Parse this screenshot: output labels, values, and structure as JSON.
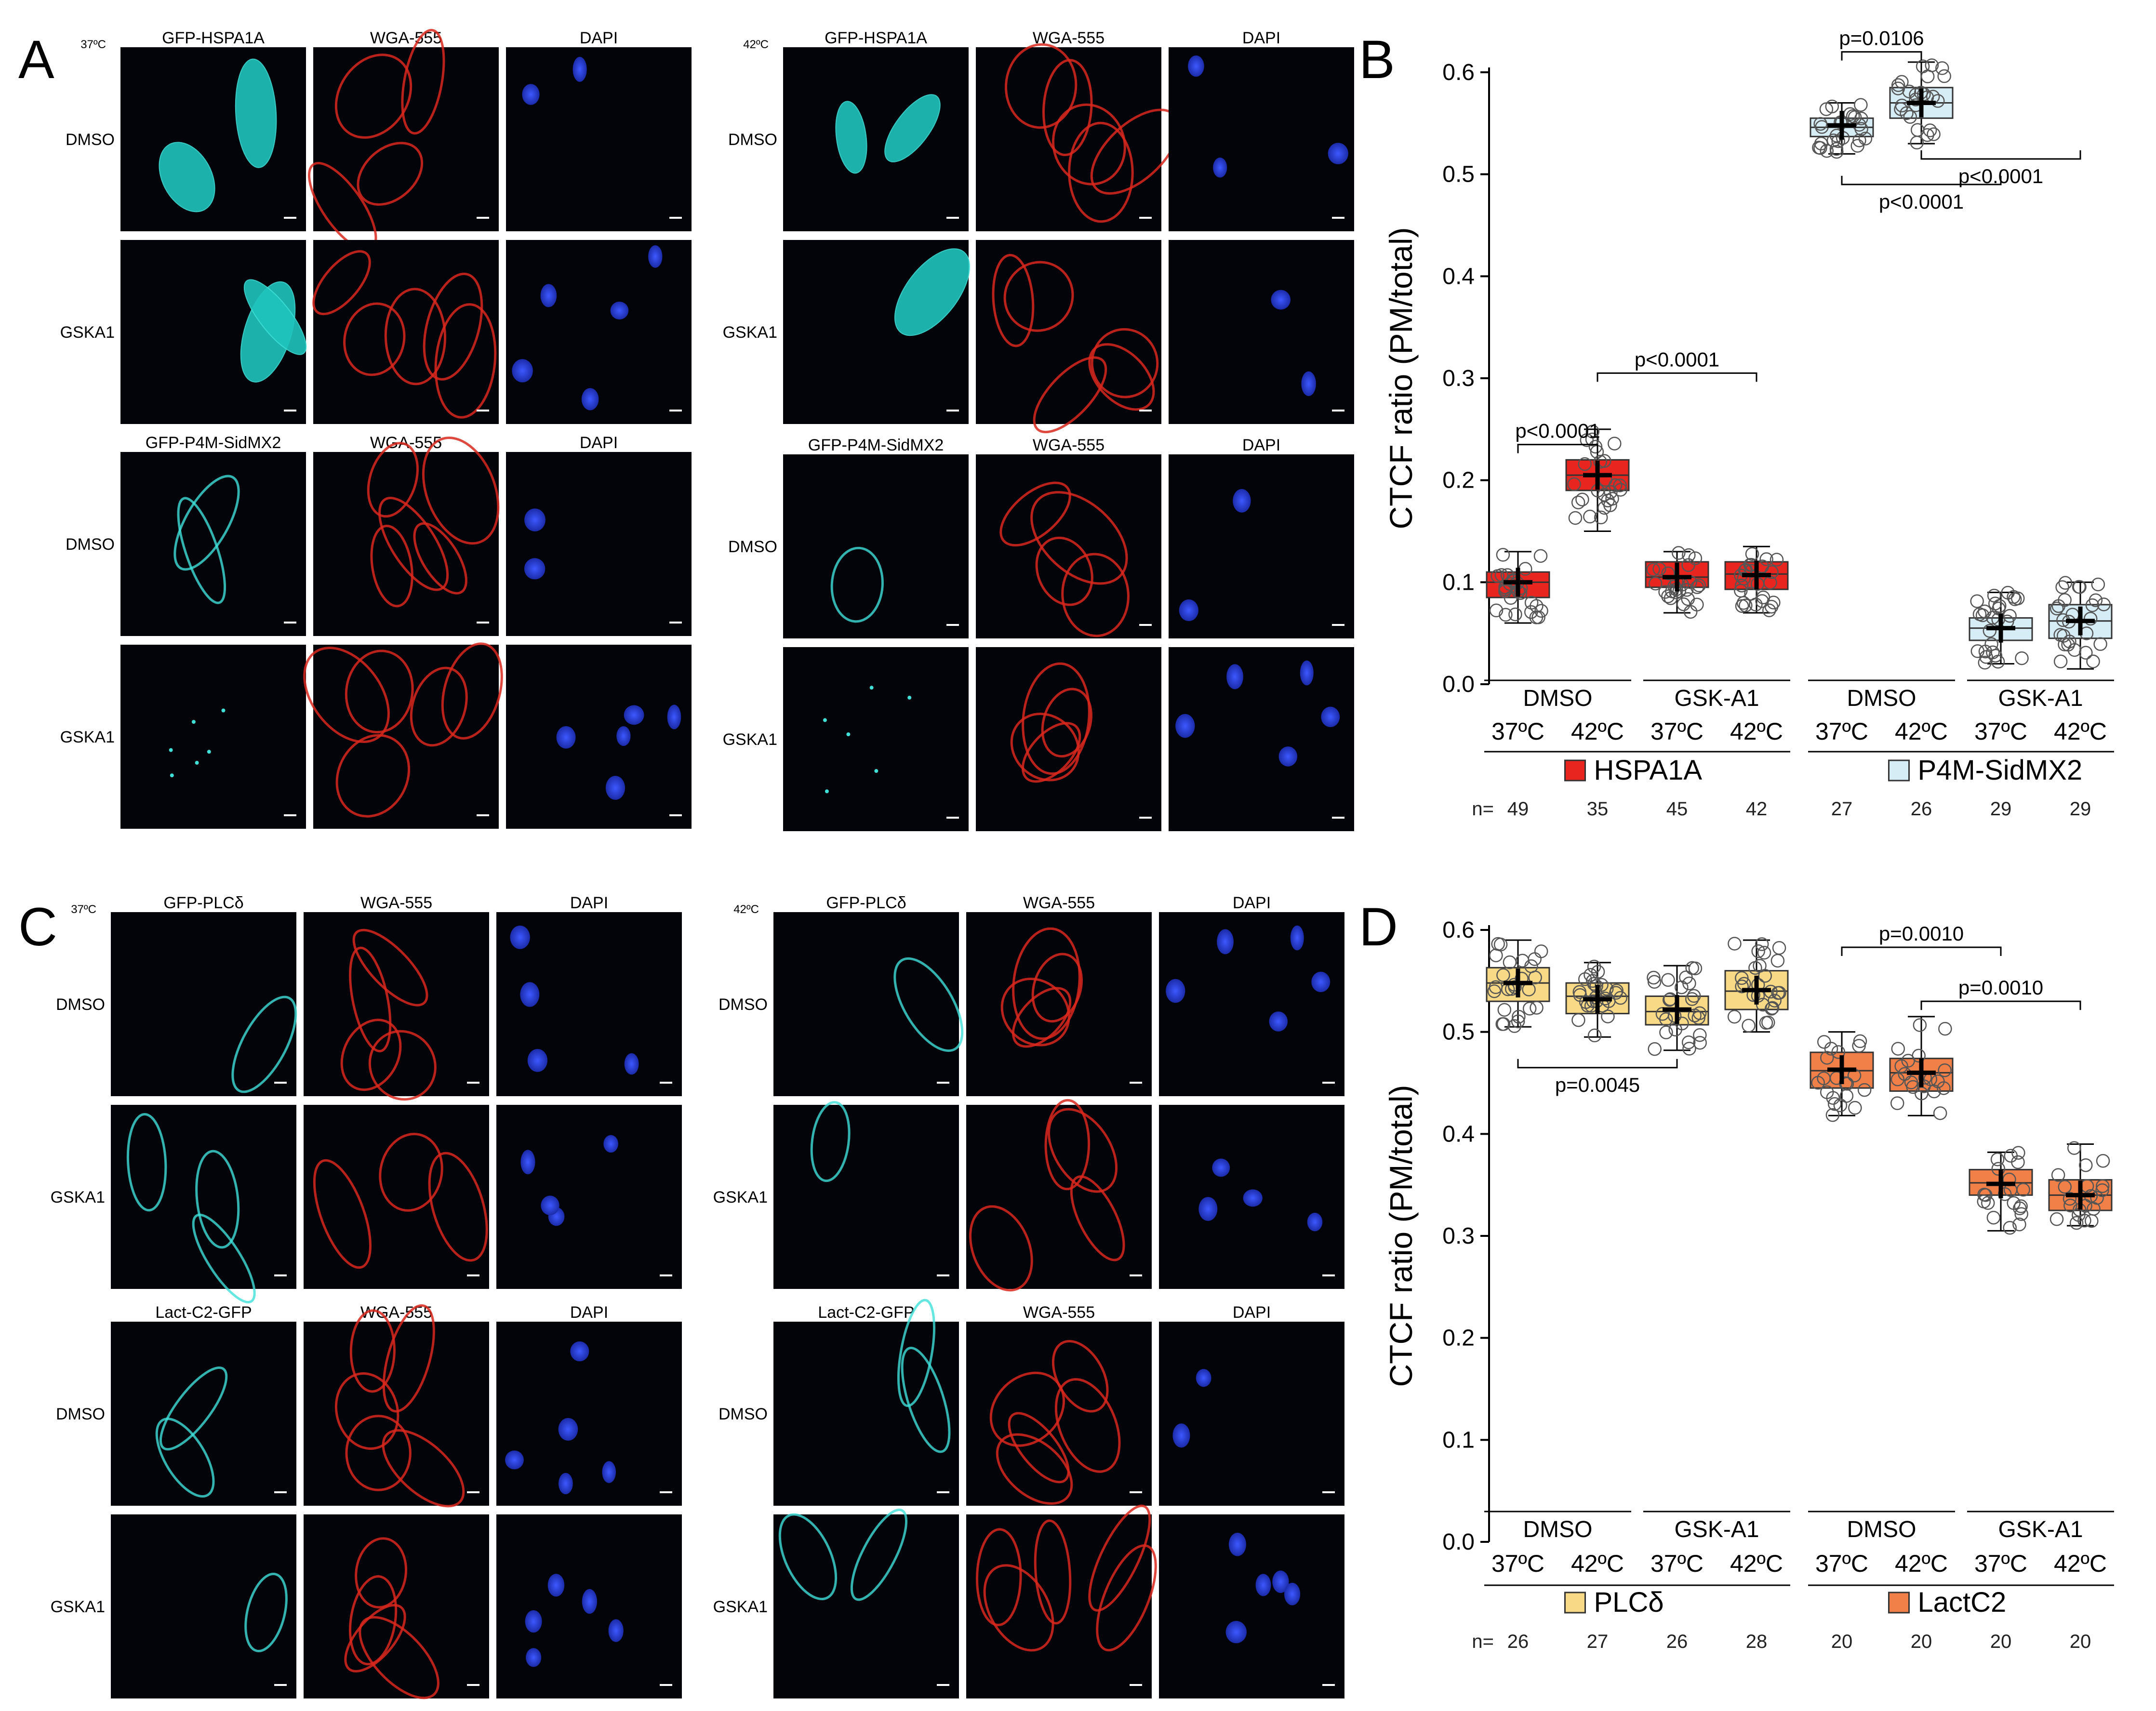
{
  "figure": {
    "panel_labels": [
      "A",
      "B",
      "C",
      "D"
    ],
    "microscopy": [
      {
        "panel": "A",
        "blocks": [
          {
            "temp": "37ºC",
            "columns": [
              "GFP-HSPA1A",
              "WGA-555",
              "DAPI"
            ],
            "rows": [
              "DMSO",
              "GSKA1"
            ],
            "reporter": "HSPA1A"
          },
          {
            "temp": "42ºC",
            "columns": [
              "GFP-HSPA1A",
              "WGA-555",
              "DAPI"
            ],
            "rows": [
              "DMSO",
              "GSKA1"
            ],
            "reporter": "HSPA1A"
          },
          {
            "temp": "",
            "columns": [
              "GFP-P4M-SidMX2",
              "WGA-555",
              "DAPI"
            ],
            "rows": [
              "DMSO",
              "GSKA1"
            ],
            "reporter": "P4M"
          },
          {
            "temp": "",
            "columns": [
              "GFP-P4M-SidMX2",
              "WGA-555",
              "DAPI"
            ],
            "rows": [
              "DMSO",
              "GSKA1"
            ],
            "reporter": "P4M"
          }
        ]
      },
      {
        "panel": "C",
        "blocks": [
          {
            "temp": "37ºC",
            "columns": [
              "GFP-PLCδ",
              "WGA-555",
              "DAPI"
            ],
            "rows": [
              "DMSO",
              "GSKA1"
            ],
            "reporter": "PLC"
          },
          {
            "temp": "42ºC",
            "columns": [
              "GFP-PLCδ",
              "WGA-555",
              "DAPI"
            ],
            "rows": [
              "DMSO",
              "GSKA1"
            ],
            "reporter": "PLC"
          },
          {
            "temp": "",
            "columns": [
              "Lact-C2-GFP",
              "WGA-555",
              "DAPI"
            ],
            "rows": [
              "DMSO",
              "GSKA1"
            ],
            "reporter": "Lact"
          },
          {
            "temp": "",
            "columns": [
              "Lact-C2-GFP",
              "WGA-555",
              "DAPI"
            ],
            "rows": [
              "DMSO",
              "GSKA1"
            ],
            "reporter": "Lact"
          }
        ]
      }
    ]
  },
  "chart_data": [
    {
      "panel": "B",
      "type": "box",
      "ylabel": "CTCF ratio (PM/total)",
      "ylim": [
        0,
        0.6
      ],
      "yticks": [
        "0.0",
        "0.1",
        "0.2",
        "0.3",
        "0.4",
        "0.5",
        "0.6"
      ],
      "treatment_labels": [
        "DMSO",
        "GSK-A1",
        "DMSO",
        "GSK-A1"
      ],
      "temperature_labels": [
        "37ºC",
        "42ºC",
        "37ºC",
        "42ºC",
        "37ºC",
        "42ºC",
        "37ºC",
        "42ºC"
      ],
      "n_prefix": "n=",
      "series": [
        {
          "name": "HSPA1A",
          "color": "#e8251e"
        },
        {
          "name": "P4M-SidMX2",
          "color": "#d6edf6"
        }
      ],
      "boxes": [
        {
          "series": 0,
          "n": "49",
          "whisker_low": 0.06,
          "q1": 0.085,
          "median": 0.1,
          "q3": 0.11,
          "whisker_high": 0.13,
          "mean": 0.1
        },
        {
          "series": 0,
          "n": "35",
          "whisker_low": 0.15,
          "q1": 0.19,
          "median": 0.205,
          "q3": 0.22,
          "whisker_high": 0.25,
          "mean": 0.205
        },
        {
          "series": 0,
          "n": "45",
          "whisker_low": 0.07,
          "q1": 0.095,
          "median": 0.105,
          "q3": 0.12,
          "whisker_high": 0.13,
          "mean": 0.105
        },
        {
          "series": 0,
          "n": "42",
          "whisker_low": 0.07,
          "q1": 0.093,
          "median": 0.108,
          "q3": 0.12,
          "whisker_high": 0.135,
          "mean": 0.107
        },
        {
          "series": 1,
          "n": "27",
          "whisker_low": 0.52,
          "q1": 0.537,
          "median": 0.546,
          "q3": 0.555,
          "whisker_high": 0.57,
          "mean": 0.548
        },
        {
          "series": 1,
          "n": "26",
          "whisker_low": 0.53,
          "q1": 0.555,
          "median": 0.57,
          "q3": 0.585,
          "whisker_high": 0.61,
          "mean": 0.57
        },
        {
          "series": 1,
          "n": "29",
          "whisker_low": 0.02,
          "q1": 0.043,
          "median": 0.055,
          "q3": 0.065,
          "whisker_high": 0.09,
          "mean": 0.055
        },
        {
          "series": 1,
          "n": "29",
          "whisker_low": 0.015,
          "q1": 0.045,
          "median": 0.062,
          "q3": 0.078,
          "whisker_high": 0.1,
          "mean": 0.062
        }
      ],
      "comparisons": [
        {
          "from": 0,
          "to": 1,
          "label": "p<0.0001",
          "y": 0.235,
          "side": "above"
        },
        {
          "from": 1,
          "to": 3,
          "label": "p<0.0001",
          "y": 0.305,
          "side": "above"
        },
        {
          "from": 4,
          "to": 5,
          "label": "p=0.0106",
          "y": 0.62,
          "side": "above"
        },
        {
          "from": 4,
          "to": 6,
          "label": "p<0.0001",
          "y": 0.49,
          "side": "below"
        },
        {
          "from": 5,
          "to": 7,
          "label": "p<0.0001",
          "y": 0.515,
          "side": "below"
        }
      ]
    },
    {
      "panel": "D",
      "type": "box",
      "ylabel": "CTCF ratio (PM/total)",
      "ylim": [
        0,
        0.6
      ],
      "yticks": [
        "0.0",
        "0.1",
        "0.2",
        "0.3",
        "0.4",
        "0.5",
        "0.6"
      ],
      "treatment_labels": [
        "DMSO",
        "GSK-A1",
        "DMSO",
        "GSK-A1"
      ],
      "temperature_labels": [
        "37ºC",
        "42ºC",
        "37ºC",
        "42ºC",
        "37ºC",
        "42ºC",
        "37ºC",
        "42ºC"
      ],
      "n_prefix": "n=",
      "series": [
        {
          "name": "PLCδ",
          "color": "#f8d985"
        },
        {
          "name": "LactC2",
          "color": "#f08048"
        }
      ],
      "boxes": [
        {
          "series": 0,
          "n": "26",
          "whisker_low": 0.505,
          "q1": 0.53,
          "median": 0.548,
          "q3": 0.563,
          "whisker_high": 0.59,
          "mean": 0.548
        },
        {
          "series": 0,
          "n": "27",
          "whisker_low": 0.495,
          "q1": 0.518,
          "median": 0.535,
          "q3": 0.548,
          "whisker_high": 0.568,
          "mean": 0.532
        },
        {
          "series": 0,
          "n": "26",
          "whisker_low": 0.482,
          "q1": 0.507,
          "median": 0.52,
          "q3": 0.535,
          "whisker_high": 0.565,
          "mean": 0.522
        },
        {
          "series": 0,
          "n": "28",
          "whisker_low": 0.5,
          "q1": 0.522,
          "median": 0.54,
          "q3": 0.56,
          "whisker_high": 0.59,
          "mean": 0.541
        },
        {
          "series": 1,
          "n": "20",
          "whisker_low": 0.418,
          "q1": 0.445,
          "median": 0.462,
          "q3": 0.48,
          "whisker_high": 0.5,
          "mean": 0.463
        },
        {
          "series": 1,
          "n": "20",
          "whisker_low": 0.418,
          "q1": 0.442,
          "median": 0.46,
          "q3": 0.474,
          "whisker_high": 0.515,
          "mean": 0.46
        },
        {
          "series": 1,
          "n": "20",
          "whisker_low": 0.305,
          "q1": 0.34,
          "median": 0.352,
          "q3": 0.365,
          "whisker_high": 0.382,
          "mean": 0.351
        },
        {
          "series": 1,
          "n": "20",
          "whisker_low": 0.31,
          "q1": 0.325,
          "median": 0.34,
          "q3": 0.355,
          "whisker_high": 0.39,
          "mean": 0.34
        }
      ],
      "comparisons": [
        {
          "from": 0,
          "to": 2,
          "label": "p=0.0045",
          "y": 0.465,
          "side": "below"
        },
        {
          "from": 4,
          "to": 6,
          "label": "p=0.0010",
          "y": 0.583,
          "side": "above"
        },
        {
          "from": 5,
          "to": 7,
          "label": "p=0.0010",
          "y": 0.53,
          "side": "above"
        }
      ]
    }
  ]
}
